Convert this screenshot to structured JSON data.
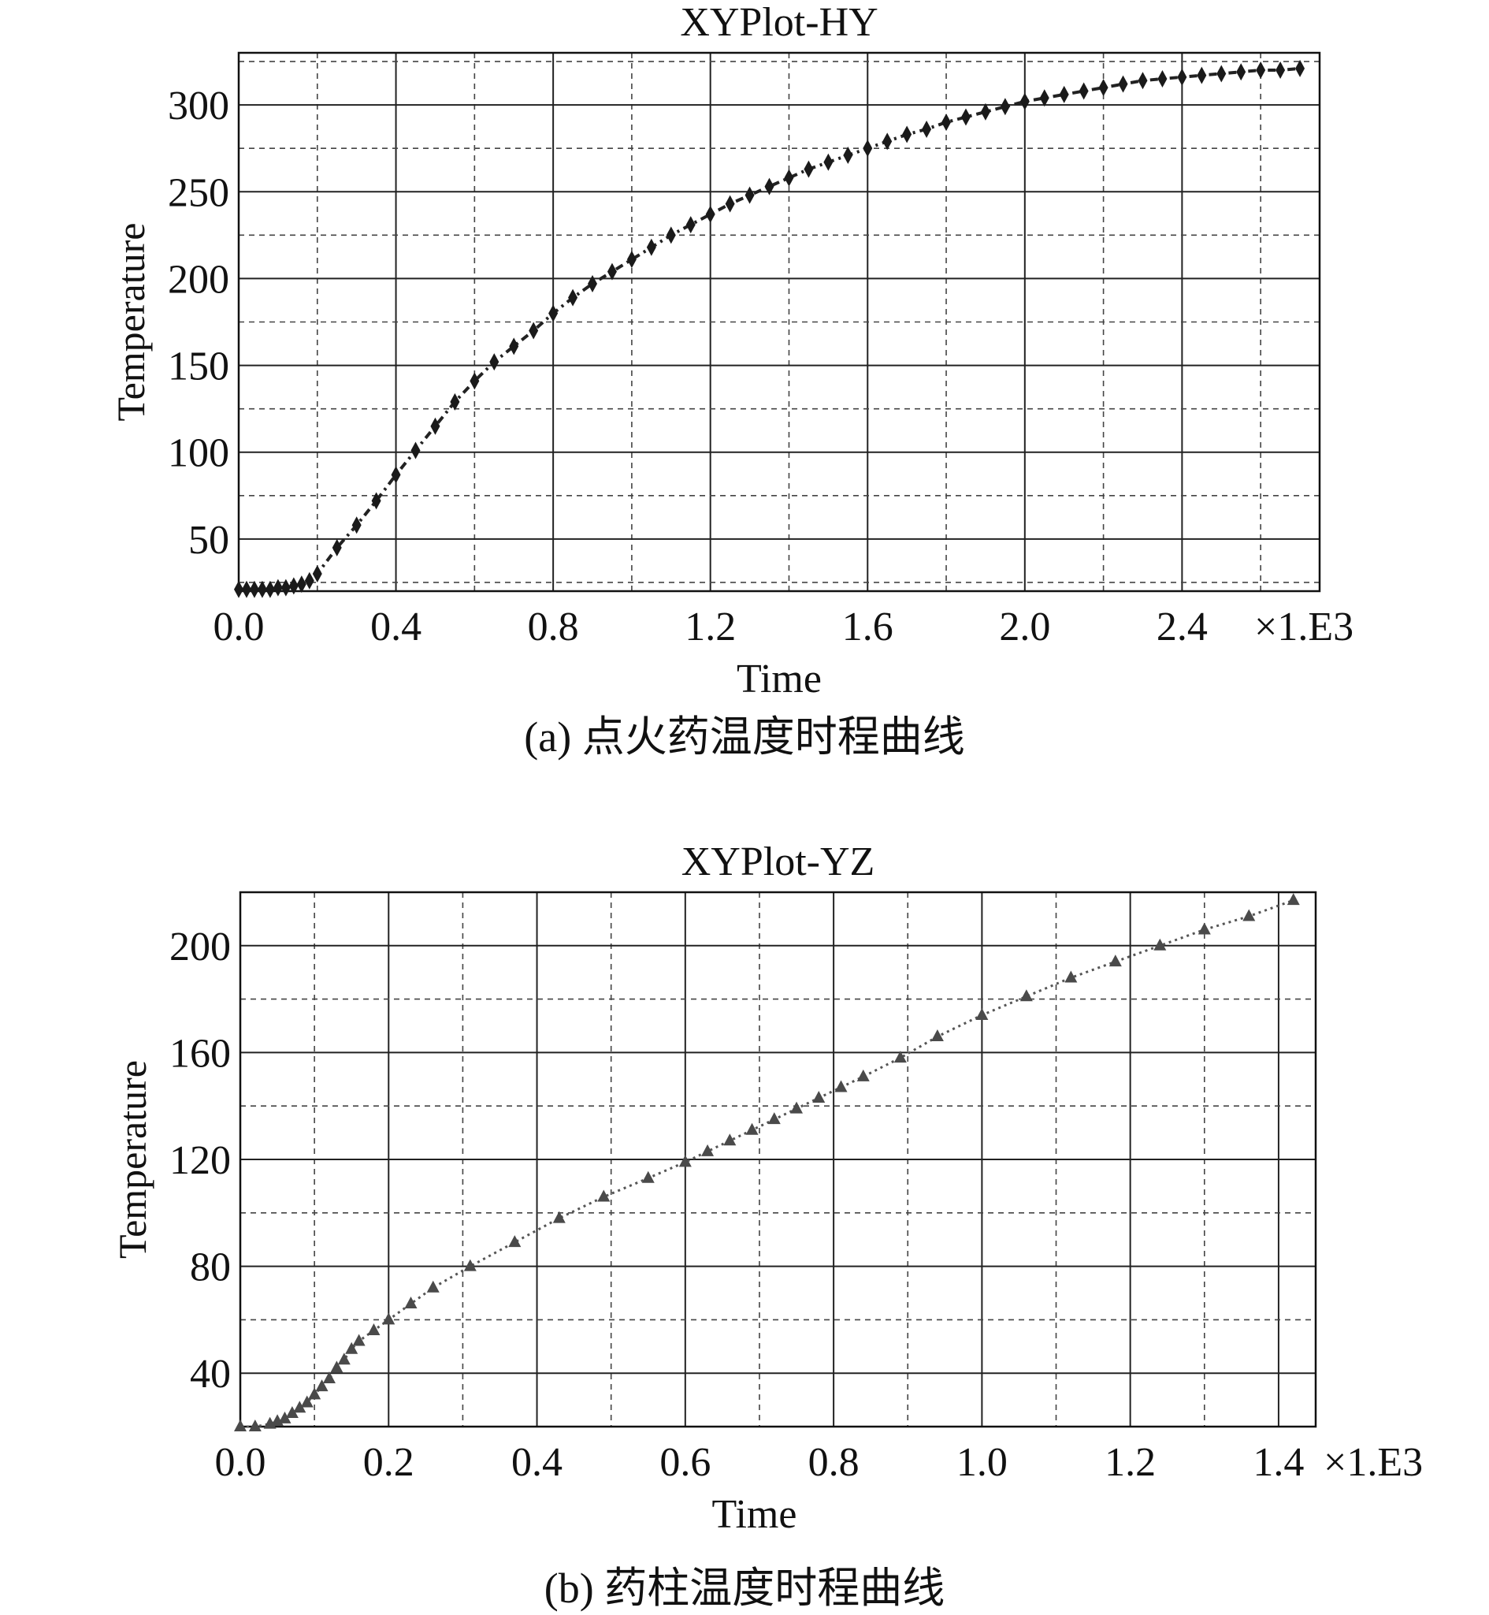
{
  "chart_data": [
    {
      "type": "scatter",
      "title": "XYPlot-HY",
      "xlabel": "Time",
      "ylabel": "Temperature",
      "multiplier_label": "×1.E3",
      "caption": "(a) 点火药温度时程曲线",
      "xlim": [
        0.0,
        2.75
      ],
      "ylim": [
        20,
        330
      ],
      "x_ticks": [
        "0.0",
        "0.4",
        "0.8",
        "1.2",
        "1.6",
        "2.0",
        "2.4"
      ],
      "x_tick_values": [
        0.0,
        0.4,
        0.8,
        1.2,
        1.6,
        2.0,
        2.4
      ],
      "y_ticks": [
        "50",
        "100",
        "150",
        "200",
        "250",
        "300"
      ],
      "y_tick_values": [
        50,
        100,
        150,
        200,
        250,
        300
      ],
      "grid": true,
      "marker": "diamond",
      "line_style": "dash-dot",
      "series": [
        {
          "x": [
            0.0,
            0.02,
            0.04,
            0.06,
            0.08,
            0.1,
            0.12,
            0.14,
            0.16,
            0.18,
            0.2,
            0.25,
            0.3,
            0.35,
            0.4,
            0.45,
            0.5,
            0.55,
            0.6,
            0.65,
            0.7,
            0.75,
            0.8,
            0.85,
            0.9,
            0.95,
            1.0,
            1.05,
            1.1,
            1.15,
            1.2,
            1.25,
            1.3,
            1.35,
            1.4,
            1.45,
            1.5,
            1.55,
            1.6,
            1.65,
            1.7,
            1.75,
            1.8,
            1.85,
            1.9,
            1.95,
            2.0,
            2.05,
            2.1,
            2.15,
            2.2,
            2.25,
            2.3,
            2.35,
            2.4,
            2.45,
            2.5,
            2.55,
            2.6,
            2.65,
            2.7
          ],
          "y": [
            21,
            21,
            21,
            21,
            21,
            22,
            22,
            23,
            24,
            26,
            30,
            45,
            58,
            72,
            87,
            101,
            115,
            129,
            141,
            152,
            161,
            170,
            180,
            189,
            197,
            204,
            211,
            218,
            225,
            231,
            237,
            243,
            248,
            253,
            258,
            263,
            267,
            271,
            275,
            279,
            283,
            286,
            290,
            293,
            296,
            299,
            302,
            304,
            306,
            308,
            310,
            312,
            314,
            315,
            316,
            317,
            318,
            319,
            320,
            320,
            321
          ]
        }
      ]
    },
    {
      "type": "scatter",
      "title": "XYPlot-YZ",
      "xlabel": "Time",
      "ylabel": "Temperature",
      "multiplier_label": "×1.E3",
      "caption": "(b) 药柱温度时程曲线",
      "xlim": [
        0.0,
        1.45
      ],
      "ylim": [
        20,
        220
      ],
      "x_ticks": [
        "0.0",
        "0.2",
        "0.4",
        "0.6",
        "0.8",
        "1.0",
        "1.2",
        "1.4"
      ],
      "x_tick_values": [
        0.0,
        0.2,
        0.4,
        0.6,
        0.8,
        1.0,
        1.2,
        1.4
      ],
      "y_ticks": [
        "40",
        "80",
        "120",
        "160",
        "200"
      ],
      "y_tick_values": [
        40,
        80,
        120,
        160,
        200
      ],
      "grid": true,
      "marker": "triangle",
      "line_style": "dotted",
      "series": [
        {
          "x": [
            0.0,
            0.02,
            0.04,
            0.05,
            0.06,
            0.07,
            0.08,
            0.09,
            0.1,
            0.11,
            0.12,
            0.13,
            0.14,
            0.15,
            0.16,
            0.18,
            0.2,
            0.23,
            0.26,
            0.31,
            0.37,
            0.43,
            0.49,
            0.55,
            0.6,
            0.63,
            0.66,
            0.69,
            0.72,
            0.75,
            0.78,
            0.81,
            0.84,
            0.89,
            0.94,
            1.0,
            1.06,
            1.12,
            1.18,
            1.24,
            1.3,
            1.36,
            1.42
          ],
          "y": [
            20,
            20,
            21,
            22,
            23,
            25,
            27,
            29,
            32,
            35,
            38,
            42,
            45,
            49,
            52,
            56,
            60,
            66,
            72,
            80,
            89,
            98,
            106,
            113,
            119,
            123,
            127,
            131,
            135,
            139,
            143,
            147,
            151,
            158,
            166,
            174,
            181,
            188,
            194,
            200,
            206,
            211,
            217
          ]
        }
      ]
    }
  ]
}
